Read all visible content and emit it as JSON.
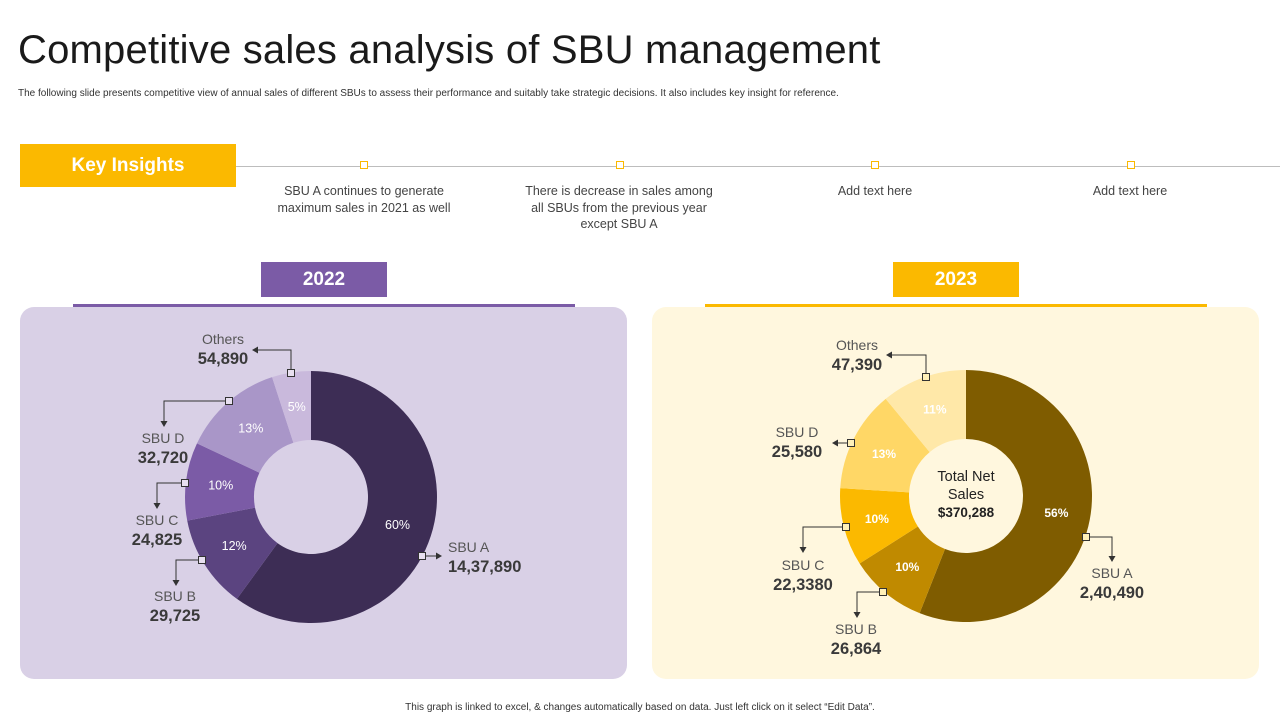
{
  "title": "Competitive sales analysis of SBU management",
  "subtitle": "The following slide presents competitive view of annual sales of different SBUs to assess their performance and suitably take strategic decisions. It also includes key insight for reference.",
  "footer": "This graph is linked to excel, & changes automatically based on data. Just left click on it select “Edit Data”.",
  "key_insights": {
    "label": "Key Insights",
    "items": [
      "SBU A continues to generate maximum sales in 2021 as well",
      "There is decrease in sales among all SBUs from the previous  year except SBU A",
      "Add text here",
      "Add text here"
    ]
  },
  "colors": {
    "purple_accent": "#7b5ba6",
    "purple_panel": "#d9d0e6",
    "yellow_accent": "#fbb900",
    "yellow_panel": "#fff7de"
  },
  "chart_data": [
    {
      "type": "donut",
      "title": "2022",
      "categories": [
        "SBU A",
        "SBU B",
        "SBU C",
        "SBU D",
        "Others"
      ],
      "values_text": [
        "14,37,890",
        "29,725",
        "24,825",
        "32,720",
        "54,890"
      ],
      "percent": [
        60,
        12,
        10,
        13,
        5
      ],
      "percent_labels": [
        "60%",
        "12%",
        "10%",
        "13%",
        "5%"
      ],
      "colors": [
        "#3d2d55",
        "#5b4480",
        "#7b5ba6",
        "#a996c8",
        "#c9b9dc"
      ],
      "center_label": null
    },
    {
      "type": "donut",
      "title": "2023",
      "categories": [
        "SBU A",
        "SBU B",
        "SBU C",
        "SBU D",
        "Others"
      ],
      "values_text": [
        "2,40,490",
        "26,864",
        "22,3380",
        "25,580",
        "47,390"
      ],
      "percent": [
        56,
        10,
        10,
        13,
        11
      ],
      "percent_labels": [
        "56%",
        "10%",
        "10%",
        "13%",
        "11%"
      ],
      "colors": [
        "#7f5c00",
        "#c08a00",
        "#fbb900",
        "#ffd766",
        "#ffe8a8"
      ],
      "center_label": [
        "Total Net",
        "Sales",
        "$370,288"
      ]
    }
  ]
}
